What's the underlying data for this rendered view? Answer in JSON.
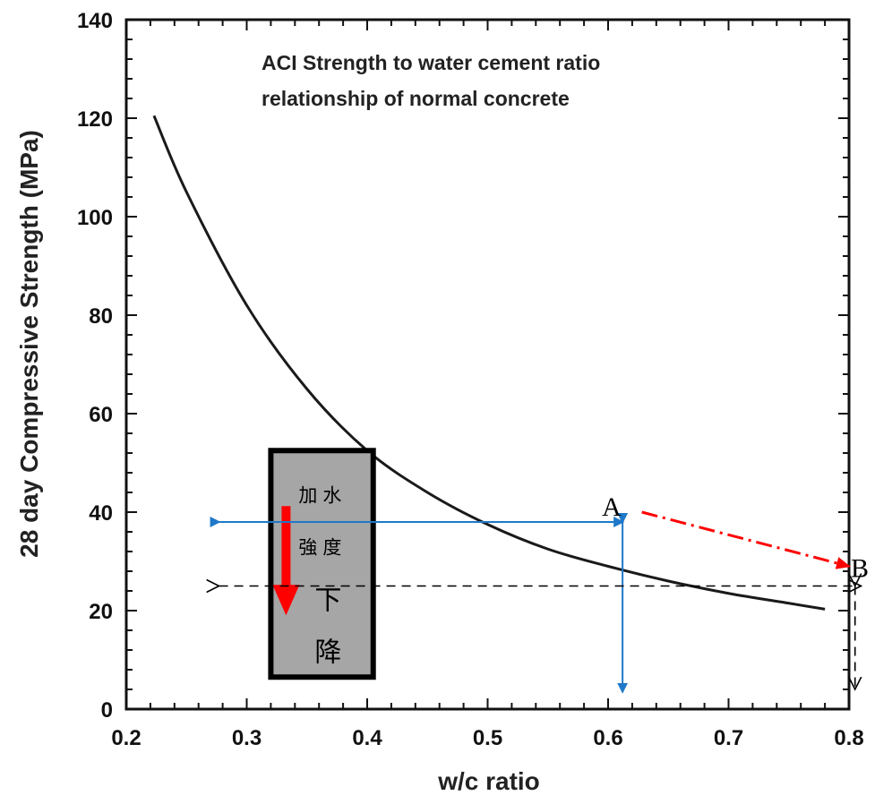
{
  "chart_data": {
    "type": "line",
    "title_lines": [
      "ACI Strength to water cement ratio",
      "relationship of normal concrete"
    ],
    "xlabel": "w/c ratio",
    "ylabel": "28 day Compressive Strength (MPa)",
    "xlim": [
      0.2,
      0.8
    ],
    "ylim": [
      0,
      140
    ],
    "x_ticks": [
      "0.2",
      "0.3",
      "0.4",
      "0.5",
      "0.6",
      "0.7",
      "0.8"
    ],
    "y_ticks": [
      "0",
      "20",
      "40",
      "60",
      "80",
      "100",
      "120",
      "140"
    ],
    "series": [
      {
        "x": [
          0.223,
          0.25,
          0.3,
          0.35,
          0.4,
          0.45,
          0.5,
          0.55,
          0.6,
          0.65,
          0.7,
          0.75,
          0.78
        ],
        "y": [
          120.5,
          105,
          82,
          65,
          52.5,
          44,
          37.5,
          32.5,
          29,
          26,
          23.5,
          21.5,
          20.3
        ],
        "color": "#1a1a1a"
      }
    ],
    "annotations": {
      "point_A": {
        "label": "A",
        "x": 0.615,
        "y": 38
      },
      "point_B": {
        "label": "B",
        "x": 0.8,
        "y": 28.8
      },
      "blue_horizontal": {
        "x_from": 0.277,
        "x_to": 0.612,
        "y": 38,
        "color": "#1f78c8"
      },
      "blue_vertical": {
        "x": 0.612,
        "y_from": 38,
        "y_to": 3.5,
        "color": "#1f78c8"
      },
      "dashed_horizontal": {
        "x_from": 0.277,
        "x_to": 0.81,
        "y": 25,
        "color": "#000000"
      },
      "dashed_vertical": {
        "x": 0.805,
        "y_from": 25,
        "y_to": 4
      },
      "red_dashdot_arrow": {
        "x_from": 0.628,
        "y_from": 40,
        "x_to": 0.8,
        "y_to": 29,
        "color": "#ff0000"
      }
    },
    "textbox": {
      "x_from": 0.32,
      "x_to": 0.405,
      "y_from": 6.5,
      "y_to": 52.5,
      "fill": "#a6a6a6",
      "border": "#000000",
      "arrow_color": "#ff0000",
      "small_chars": [
        "加",
        "水",
        "強",
        "度"
      ],
      "large_chars": [
        "下",
        "降"
      ]
    }
  }
}
